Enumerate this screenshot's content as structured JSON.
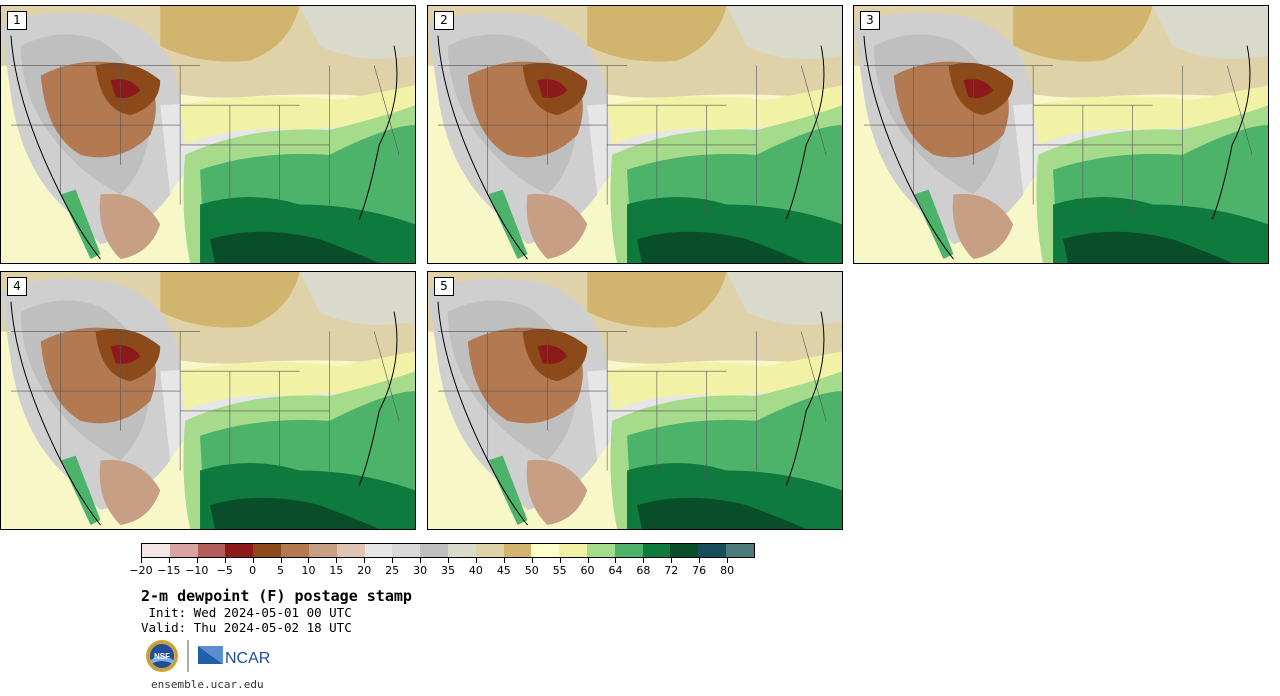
{
  "panels": [
    {
      "label": "1"
    },
    {
      "label": "2"
    },
    {
      "label": "3"
    },
    {
      "label": "4"
    },
    {
      "label": "5"
    }
  ],
  "colorbar": {
    "colors": [
      "#f5e6e6",
      "#d9a3a3",
      "#b35c5c",
      "#8c1a1a",
      "#8c4a1a",
      "#b37a52",
      "#c79f85",
      "#dfc3b3",
      "#e6e6e6",
      "#d9d9d9",
      "#bfbfbf",
      "#d9d9cc",
      "#e0d2a8",
      "#d1b46e",
      "#ffffcc",
      "#f2f2a6",
      "#a6db8c",
      "#4db36b",
      "#0f7a3d",
      "#0a4d2b",
      "#1a4d5c",
      "#4d7a7a"
    ],
    "tick_labels": [
      "−20",
      "−15",
      "−10",
      "−5",
      "0",
      "5",
      "10",
      "15",
      "20",
      "25",
      "30",
      "35",
      "40",
      "45",
      "50",
      "55",
      "60",
      "64",
      "68",
      "72",
      "76",
      "80"
    ]
  },
  "title": "2-m dewpoint (F) postage stamp",
  "init": " Init: Wed 2024-05-01 00 UTC",
  "valid": "Valid: Thu 2024-05-02 18 UTC",
  "logos": {
    "nsf": "NSF",
    "ncar": "NCAR"
  },
  "site": "ensemble.ucar.edu"
}
